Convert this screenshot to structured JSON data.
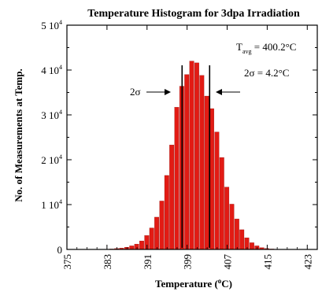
{
  "chart_data": {
    "type": "bar",
    "title": "Temperature Histogram for 3dpa Irradiation",
    "xlabel": "Temperature (°C)",
    "ylabel": "No. of Measurements at Temp.",
    "xlim": [
      375,
      425
    ],
    "ylim": [
      0,
      50000
    ],
    "x_ticks": [
      {
        "value": 375,
        "label": "375"
      },
      {
        "value": 383,
        "label": "383"
      },
      {
        "value": 391,
        "label": "391"
      },
      {
        "value": 399,
        "label": "399"
      },
      {
        "value": 407,
        "label": "407"
      },
      {
        "value": 415,
        "label": "415"
      },
      {
        "value": 423,
        "label": "423"
      }
    ],
    "y_ticks": [
      {
        "value": 0,
        "label": "0"
      },
      {
        "value": 10000,
        "label": "1 10",
        "exp": "4"
      },
      {
        "value": 20000,
        "label": "2 10",
        "exp": "4"
      },
      {
        "value": 30000,
        "label": "3 10",
        "exp": "4"
      },
      {
        "value": 40000,
        "label": "4 10",
        "exp": "4"
      },
      {
        "value": 50000,
        "label": "5 10",
        "exp": "4"
      }
    ],
    "bin_width": 1,
    "x": [
      384,
      385,
      386,
      387,
      388,
      389,
      390,
      391,
      392,
      393,
      394,
      395,
      396,
      397,
      398,
      399,
      400,
      401,
      402,
      403,
      404,
      405,
      406,
      407,
      408,
      409,
      410,
      411,
      412,
      413,
      414,
      415,
      416
    ],
    "values": [
      100,
      200,
      300,
      500,
      800,
      1200,
      1900,
      3100,
      4800,
      7200,
      10800,
      16500,
      23300,
      31700,
      36400,
      39000,
      42000,
      41600,
      38800,
      34200,
      31400,
      26200,
      20500,
      13900,
      10100,
      6800,
      4400,
      2600,
      1500,
      800,
      400,
      200,
      100
    ],
    "bar_color": "#e21b14",
    "annotations": {
      "tavg_label": "T",
      "tavg_sub": "avg",
      "tavg_value": " = 400.2°C",
      "sigma_label": "2σ = 4.2°C",
      "two_sigma_marker": "2σ"
    },
    "sigma_lines": [
      398,
      403.5
    ]
  }
}
